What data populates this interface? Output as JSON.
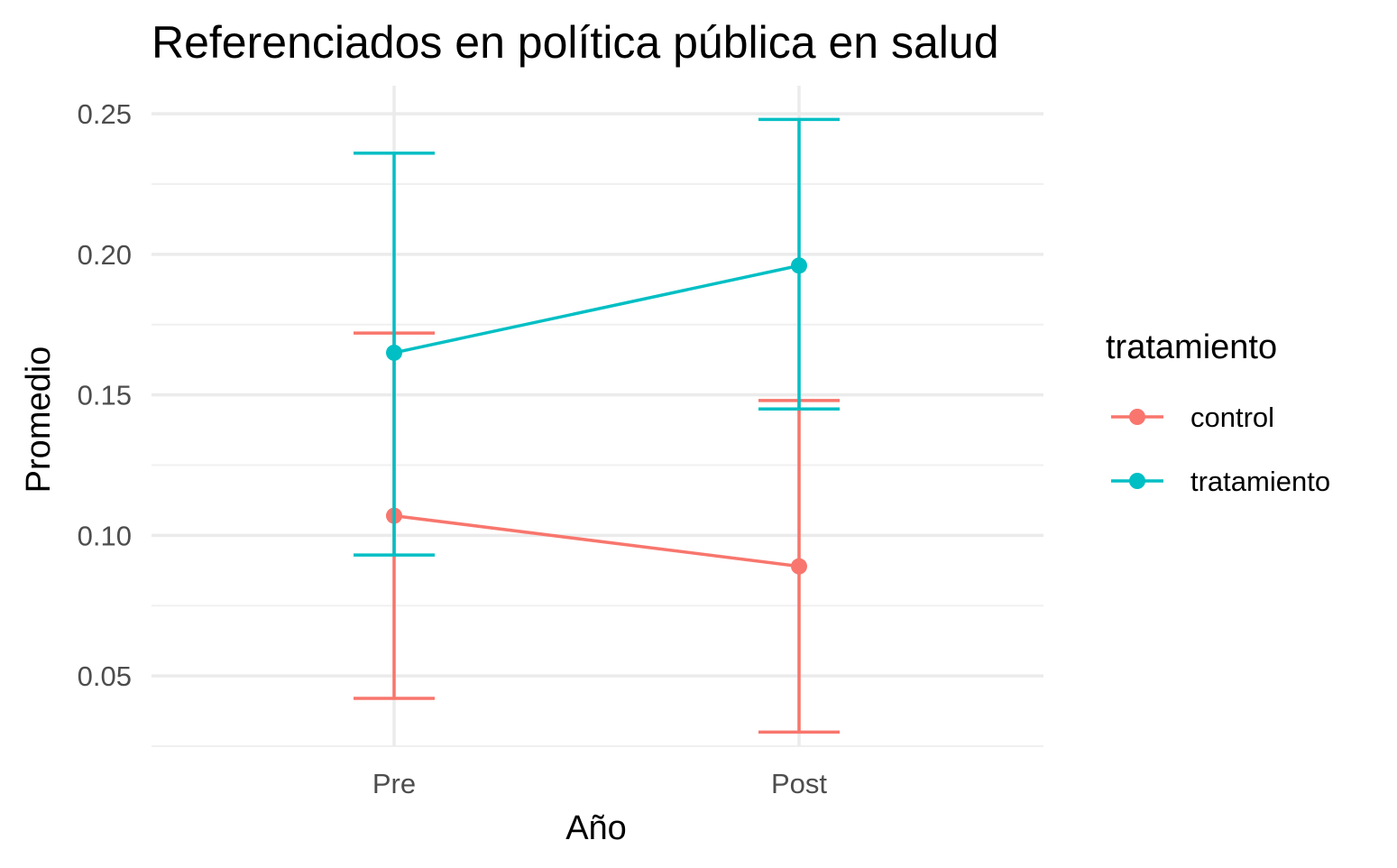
{
  "chart_data": {
    "type": "line",
    "title": "Referenciados en política pública en salud",
    "xlabel": "Año",
    "ylabel": "Promedio",
    "categories": [
      "Pre",
      "Post"
    ],
    "ylim": [
      0.025,
      0.26
    ],
    "y_ticks": [
      "0.05",
      "0.10",
      "0.15",
      "0.20",
      "0.25"
    ],
    "y_tick_values": [
      0.05,
      0.1,
      0.15,
      0.2,
      0.25
    ],
    "grid": true,
    "legend": {
      "title": "tratamiento",
      "position": "right"
    },
    "series": [
      {
        "name": "control",
        "color": "#F8766D",
        "values": [
          0.107,
          0.089
        ],
        "lower": [
          0.042,
          0.03
        ],
        "upper": [
          0.172,
          0.148
        ]
      },
      {
        "name": "tratamiento",
        "color": "#00BFC4",
        "values": [
          0.165,
          0.196
        ],
        "lower": [
          0.093,
          0.145
        ],
        "upper": [
          0.236,
          0.248
        ]
      }
    ]
  }
}
